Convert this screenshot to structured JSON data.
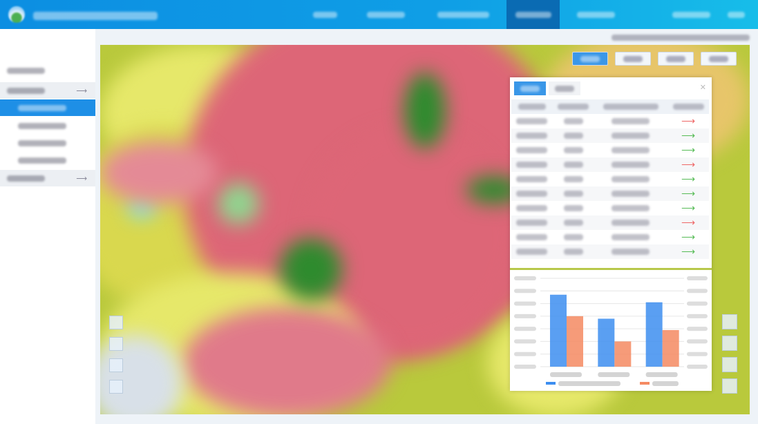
{
  "header": {
    "nav": [
      {
        "active": false
      },
      {
        "active": false
      },
      {
        "active": false
      },
      {
        "active": true
      },
      {
        "active": false
      },
      {
        "active": false
      },
      {
        "active": false
      }
    ]
  },
  "sidebar": {
    "items": [
      {
        "type": "title"
      },
      {
        "type": "group",
        "expanded": true
      },
      {
        "type": "sub",
        "active": true
      },
      {
        "type": "sub"
      },
      {
        "type": "sub"
      },
      {
        "type": "sub"
      },
      {
        "type": "group",
        "expanded": false
      }
    ]
  },
  "map": {
    "buttons": [
      {
        "active": true
      },
      {
        "active": false
      },
      {
        "active": false
      },
      {
        "active": false
      }
    ],
    "colors": {
      "urban": "#dd6677",
      "forest": "#2e8b2e",
      "farmland": "#b9c93c",
      "grass": "#e6e86a"
    }
  },
  "panel": {
    "tabs": [
      {
        "active": true
      },
      {
        "active": false
      }
    ],
    "columns": 4,
    "rows": [
      {
        "trend": "up"
      },
      {
        "trend": "down"
      },
      {
        "trend": "down"
      },
      {
        "trend": "up"
      },
      {
        "trend": "down"
      },
      {
        "trend": "down"
      },
      {
        "trend": "down"
      },
      {
        "trend": "up"
      },
      {
        "trend": "down"
      },
      {
        "trend": "down"
      }
    ],
    "trend_colors": {
      "up": "#ee6666",
      "down": "#55bb55"
    }
  },
  "chart_data": {
    "type": "bar",
    "categories": [
      "",
      "",
      ""
    ],
    "series": [
      {
        "color": "#3d8ef0",
        "values": [
          5.7,
          3.8,
          5.1
        ]
      },
      {
        "color": "#f58a62",
        "values": [
          4.0,
          2.0,
          2.9
        ]
      }
    ],
    "ylim": [
      0,
      7
    ],
    "grid": true,
    "legend": "bottom"
  }
}
